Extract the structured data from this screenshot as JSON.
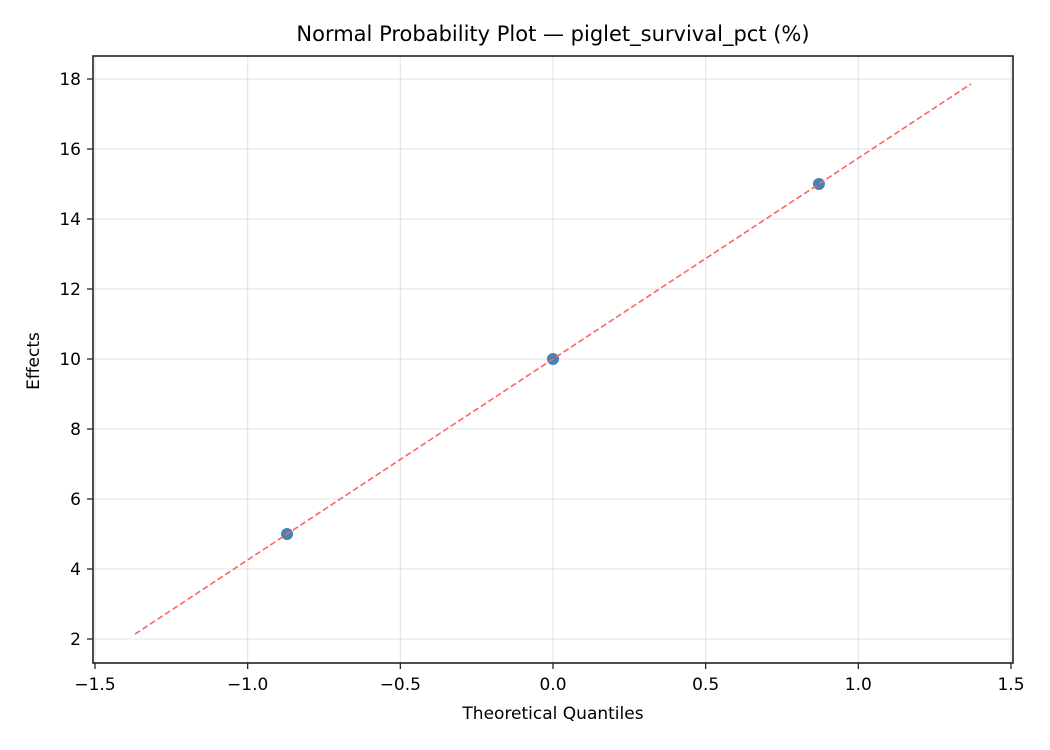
{
  "chart_data": {
    "type": "scatter",
    "title": "Normal Probability Plot — piglet_survival_pct (%)",
    "xlabel": "Theoretical Quantiles",
    "ylabel": "Effects",
    "xlim": [
      -1.52,
      1.52
    ],
    "ylim": [
      1.3,
      18.65
    ],
    "xticks": [
      -1.5,
      -1.0,
      -0.5,
      0.0,
      0.5,
      1.0,
      1.5
    ],
    "xtick_labels": [
      "−1.5",
      "−1.0",
      "−0.5",
      "0.0",
      "0.5",
      "1.0",
      "1.5"
    ],
    "yticks": [
      2,
      4,
      6,
      8,
      10,
      12,
      14,
      16,
      18
    ],
    "ytick_labels": [
      "2",
      "4",
      "6",
      "8",
      "10",
      "12",
      "14",
      "16",
      "18"
    ],
    "grid": true,
    "series": [
      {
        "name": "effects",
        "kind": "points",
        "color": "#4682b4",
        "x": [
          -0.871,
          0.0,
          0.871
        ],
        "y": [
          5,
          10,
          15
        ]
      },
      {
        "name": "reference line",
        "kind": "dashed-line",
        "color": "#ff6464",
        "x": [
          -1.369,
          1.369
        ],
        "y": [
          2.14,
          17.86
        ]
      }
    ]
  }
}
